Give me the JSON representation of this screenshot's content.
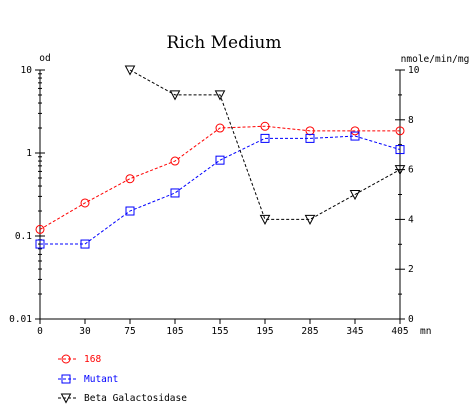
{
  "chart_data": {
    "type": "line",
    "title": "Rich Medium",
    "x": [
      0,
      30,
      75,
      105,
      155,
      195,
      285,
      345,
      405
    ],
    "x_unit": "mn",
    "y_left": {
      "unit": "od",
      "scale": "log",
      "ylim": [
        0.01,
        10
      ],
      "ticks": [
        "10",
        "1",
        "0.1",
        "0.01"
      ]
    },
    "y_right": {
      "unit": "nmole/min/mg",
      "scale": "linear",
      "ylim": [
        0,
        10
      ],
      "ticks": [
        "10",
        "8",
        "6",
        "4",
        "2",
        "0"
      ]
    },
    "grid": false,
    "legend_position": "bottom-left",
    "series": [
      {
        "name": "168",
        "axis": "left",
        "color": "#ff0000",
        "marker": "circle",
        "x": [
          0,
          30,
          75,
          105,
          155,
          195,
          285,
          345,
          405
        ],
        "y": [
          0.12,
          0.25,
          0.49,
          0.8,
          2.0,
          2.1,
          1.85,
          1.85,
          1.85
        ]
      },
      {
        "name": "Mutant",
        "axis": "left",
        "color": "#0000ff",
        "marker": "square",
        "x": [
          0,
          30,
          75,
          105,
          155,
          195,
          285,
          345,
          405
        ],
        "y": [
          0.08,
          0.08,
          0.2,
          0.33,
          0.82,
          1.5,
          1.5,
          1.6,
          1.1
        ]
      },
      {
        "name": "Beta Galactosidase",
        "axis": "right",
        "color": "#000000",
        "marker": "triangle-down",
        "x": [
          75,
          105,
          155,
          195,
          285,
          345,
          405
        ],
        "y": [
          10,
          9,
          9,
          4,
          4,
          5,
          6
        ]
      }
    ]
  }
}
